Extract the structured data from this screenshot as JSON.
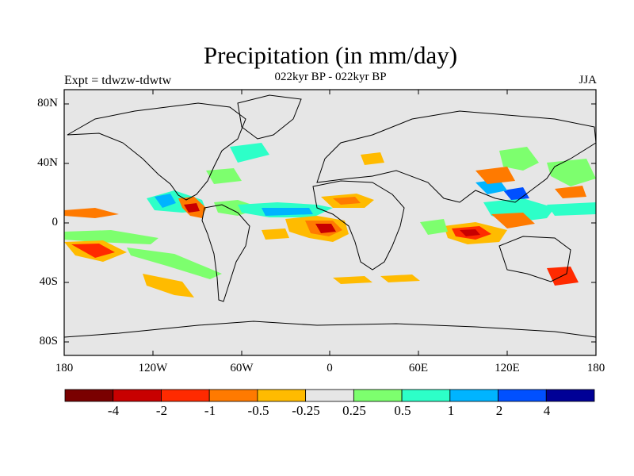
{
  "header": {
    "title": "Precipitation (in mm/day)",
    "subtitle": "022kyr BP - 022kyr BP",
    "left_label": "Expt = tdwzw-tdwtw",
    "right_label": "JJA"
  },
  "axes": {
    "lat_labels": [
      "80N",
      "40N",
      "0",
      "40S",
      "80S"
    ],
    "lon_labels": [
      "180",
      "120W",
      "60W",
      "0",
      "60E",
      "120E",
      "180"
    ]
  },
  "colorbar": {
    "colors": [
      "#7a0000",
      "#c80000",
      "#ff2a00",
      "#ff7a00",
      "#ffbb00",
      "#e6e6e6",
      "#7dff6e",
      "#2dffc8",
      "#00b4ff",
      "#0050ff",
      "#000096"
    ],
    "labels": [
      "-4",
      "-2",
      "-1",
      "-0.5",
      "-0.25",
      "0.25",
      "0.5",
      "1",
      "2",
      "4"
    ]
  },
  "colors": {
    "ocean_bg": "#e6e6e6",
    "coast": "#000000"
  }
}
